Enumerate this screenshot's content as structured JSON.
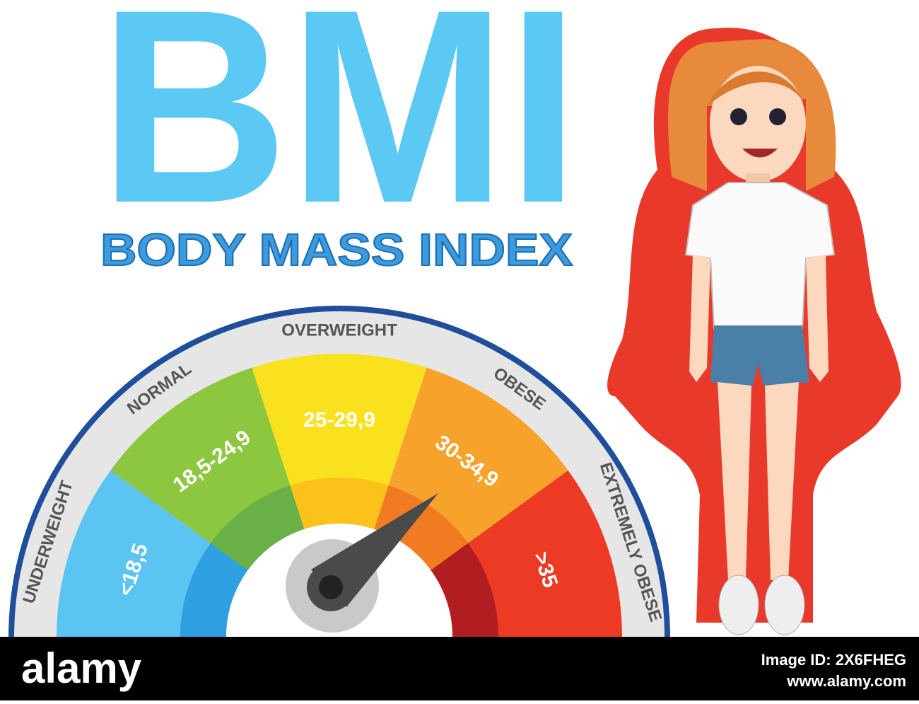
{
  "title": "BMI",
  "subtitle": "BODY MASS INDEX",
  "gauge": {
    "segments": [
      {
        "category": "UNDERWEIGHT",
        "range": "<18,5",
        "color": "#5bc4f1",
        "inner_color": "#2e9fe0"
      },
      {
        "category": "NORMAL",
        "range": "18,5-24,9",
        "color": "#8dc63f",
        "inner_color": "#69b046"
      },
      {
        "category": "OVERWEIGHT",
        "range": "25-29,9",
        "color": "#f9e11e",
        "inner_color": "#fbc21b"
      },
      {
        "category": "OBESE",
        "range": "30-34,9",
        "color": "#f7a22a",
        "inner_color": "#f07b22"
      },
      {
        "category": "EXTREMELY OBESE",
        "range": ">35",
        "color": "#ec3a24",
        "inner_color": "#b21d22"
      }
    ]
  },
  "footer": {
    "brand": "alamy",
    "image_id": "Image ID: 2X6FHEG",
    "url": "www.alamy.com"
  }
}
